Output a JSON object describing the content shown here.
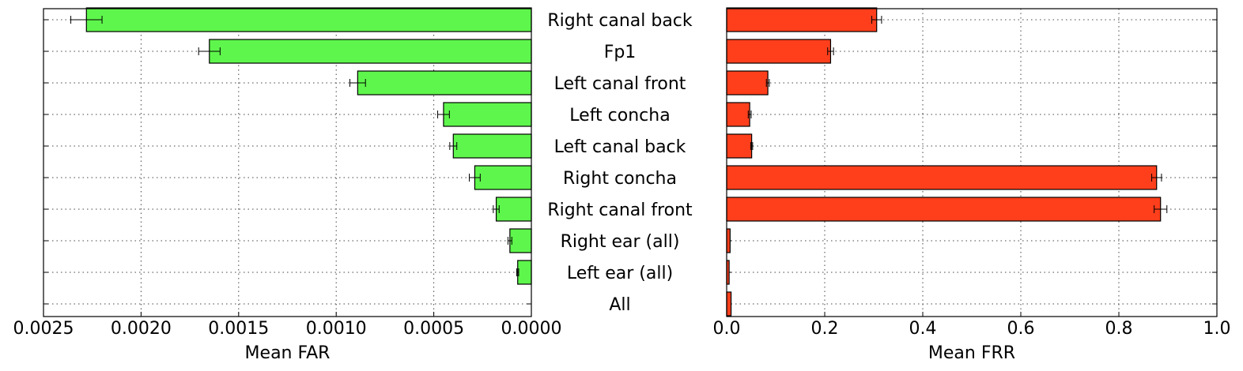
{
  "chart_data": [
    {
      "type": "bar",
      "orientation": "horizontal",
      "title": "",
      "xlabel": "Mean FAR",
      "ylabel": "",
      "xlim": [
        0.0025,
        0.0
      ],
      "x_inverted": true,
      "xticks": [
        "0.0025",
        "0.0020",
        "0.0015",
        "0.0010",
        "0.0005",
        "0.0000"
      ],
      "xtick_values": [
        0.0025,
        0.002,
        0.0015,
        0.001,
        0.0005,
        0.0
      ],
      "grid": true,
      "color": "#5ef64c",
      "categories": [
        "Right canal back",
        "Fp1",
        "Left canal front",
        "Left concha",
        "Left canal back",
        "Right concha",
        "Right canal front",
        "Right ear (all)",
        "Left ear (all)",
        "All"
      ],
      "values": [
        0.00228,
        0.00165,
        0.00089,
        0.00045,
        0.0004,
        0.00029,
        0.00018,
        0.00011,
        7e-05,
        0.0
      ],
      "errors": [
        8e-05,
        5.5e-05,
        4e-05,
        3e-05,
        1.8e-05,
        2.8e-05,
        1.5e-05,
        1e-05,
        5e-06,
        0.0
      ]
    },
    {
      "type": "bar",
      "orientation": "horizontal",
      "title": "",
      "xlabel": "Mean FRR",
      "ylabel": "",
      "xlim": [
        0.0,
        1.0
      ],
      "xticks": [
        "0.0",
        "0.2",
        "0.4",
        "0.6",
        "0.8",
        "1.0"
      ],
      "xtick_values": [
        0.0,
        0.2,
        0.4,
        0.6,
        0.8,
        1.0
      ],
      "grid": true,
      "color": "#ff3f1c",
      "categories": [
        "Right canal back",
        "Fp1",
        "Left canal front",
        "Left concha",
        "Left canal back",
        "Right concha",
        "Right canal front",
        "Right ear (all)",
        "Left ear (all)",
        "All"
      ],
      "values": [
        0.306,
        0.212,
        0.084,
        0.047,
        0.051,
        0.877,
        0.885,
        0.007,
        0.005,
        0.009
      ],
      "errors": [
        0.01,
        0.006,
        0.003,
        0.003,
        0.002,
        0.01,
        0.013,
        0.0,
        0.0,
        0.0
      ]
    }
  ]
}
